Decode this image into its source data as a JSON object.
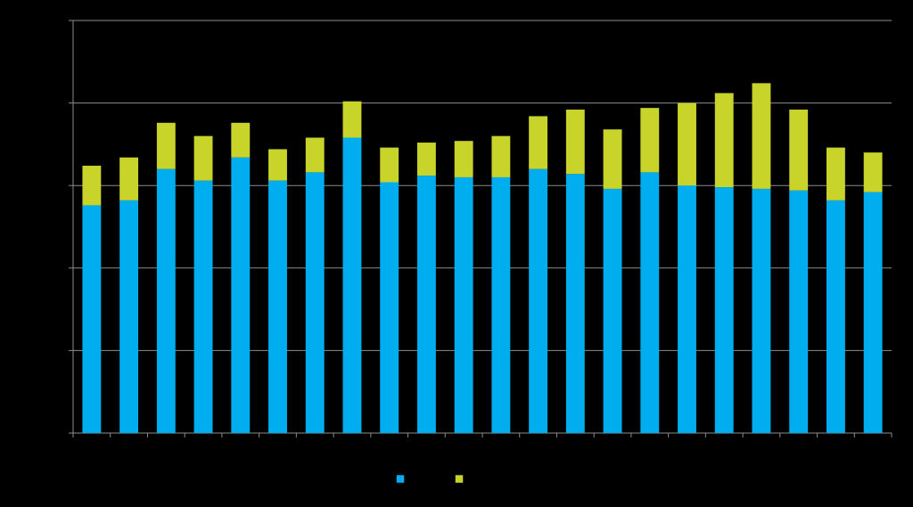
{
  "chart_data": {
    "type": "bar",
    "stacked": true,
    "ylim": [
      0,
      25
    ],
    "yticks": [
      0,
      5,
      10,
      15,
      20,
      25
    ],
    "grid": true,
    "legend_position": "bottom",
    "x": [
      1,
      2,
      3,
      4,
      5,
      6,
      7,
      8,
      9,
      10,
      11,
      12,
      13,
      14,
      15,
      16,
      17,
      18,
      19,
      20,
      21,
      22
    ],
    "series": [
      {
        "color": "#00AEEF",
        "values": [
          13.8,
          14.1,
          16.0,
          15.3,
          16.7,
          15.3,
          15.8,
          17.9,
          15.2,
          15.6,
          15.5,
          15.5,
          16.0,
          15.7,
          14.8,
          15.8,
          15.0,
          14.9,
          14.8,
          14.7,
          14.1,
          14.6
        ]
      },
      {
        "color": "#C8D42A",
        "values": [
          2.4,
          2.6,
          2.8,
          2.7,
          2.1,
          1.9,
          2.1,
          2.2,
          2.1,
          2.0,
          2.2,
          2.5,
          3.2,
          3.9,
          3.6,
          3.9,
          5.0,
          5.7,
          6.4,
          4.9,
          3.2,
          2.4
        ]
      }
    ]
  }
}
